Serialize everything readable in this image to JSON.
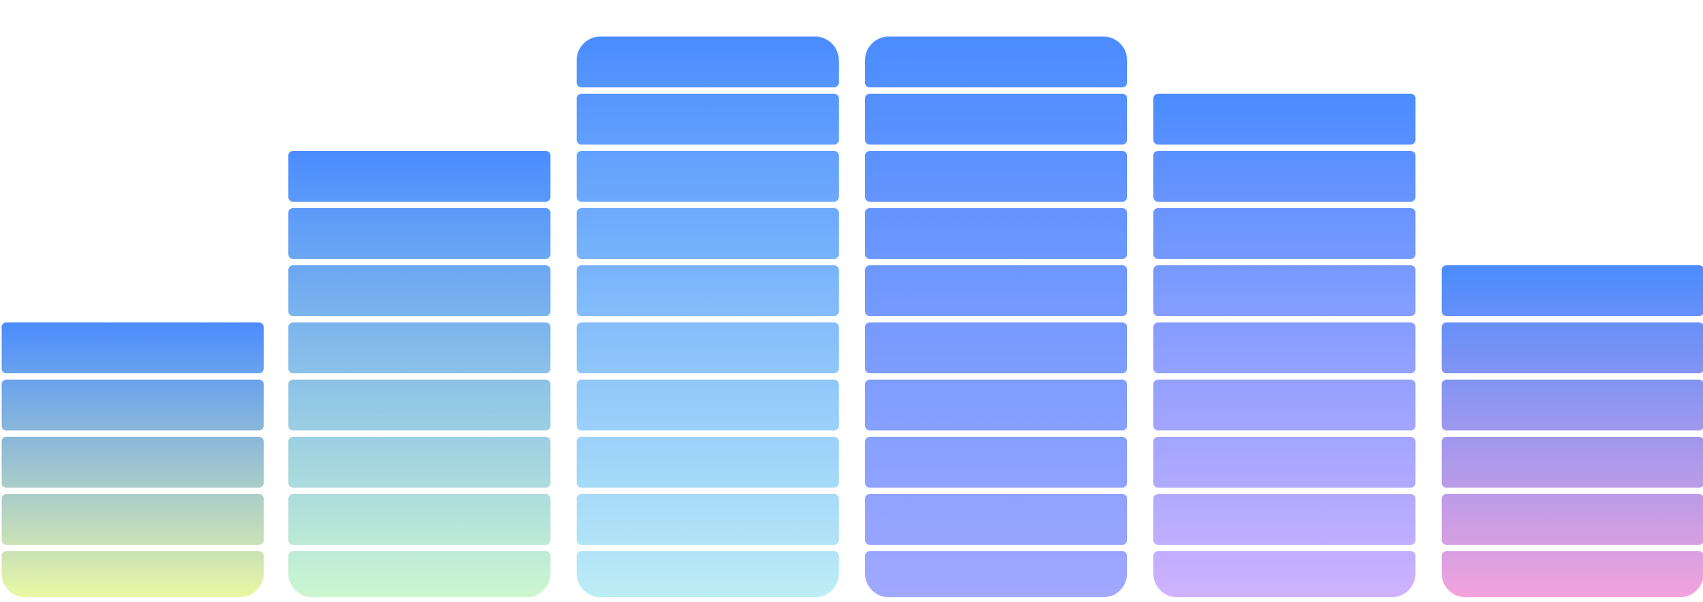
{
  "chart_data": {
    "type": "bar",
    "style": "stacked segmented columns with gradient fill",
    "categories": [
      "",
      "",
      "",
      "",
      "",
      ""
    ],
    "values": [
      5,
      8,
      10,
      10,
      9,
      6
    ],
    "ylim": [
      0,
      10
    ],
    "grid": false,
    "legend": "none",
    "title": "",
    "xlabel": "",
    "ylabel": "",
    "colors": [
      {
        "top": "#4a8cff",
        "bottom": "#eaf8a3"
      },
      {
        "top": "#4a8cff",
        "bottom": "#cdf7d0"
      },
      {
        "top": "#4a8cff",
        "bottom": "#bdeef6"
      },
      {
        "top": "#4a8cff",
        "bottom": "#a1a8ff"
      },
      {
        "top": "#4a8cff",
        "bottom": "#cfb2ff"
      },
      {
        "top": "#4a8cff",
        "bottom": "#f3a3dc"
      }
    ]
  }
}
